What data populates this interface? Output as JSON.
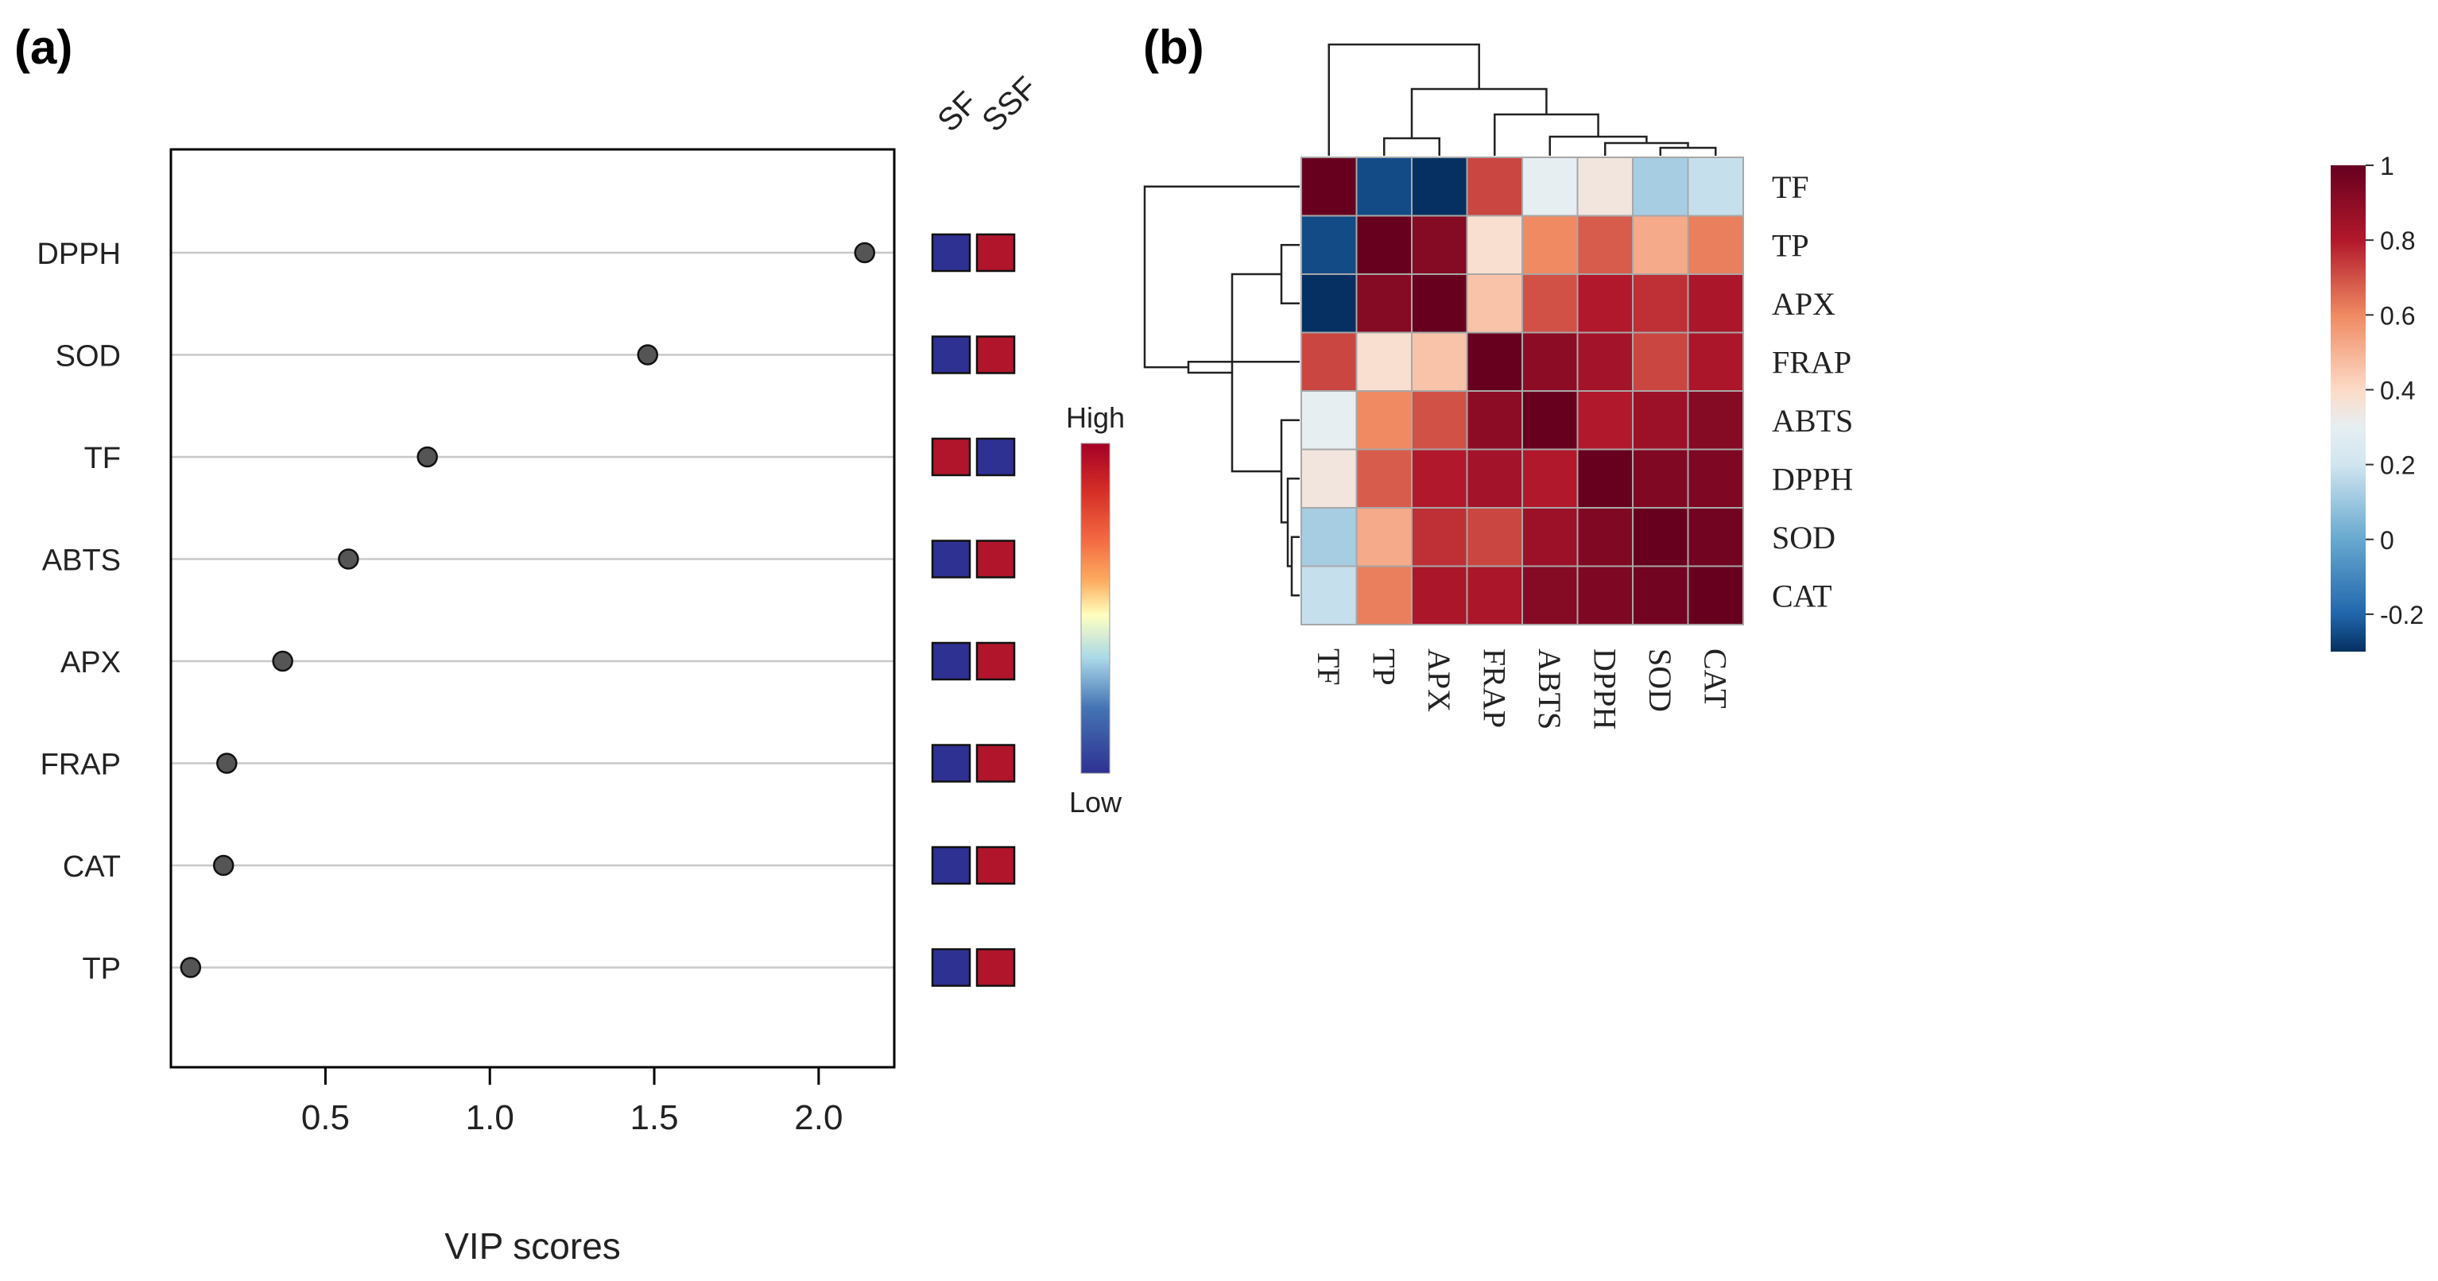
{
  "panel_a": {
    "label": "(a)",
    "chart_data": {
      "type": "scatter",
      "xlabel": "VIP scores",
      "xlim": [
        0.03,
        2.23
      ],
      "xticks": [
        "0.5",
        "1.0",
        "1.5",
        "2.0"
      ],
      "xtick_values": [
        0.5,
        1.0,
        1.5,
        2.0
      ],
      "categories": [
        "DPPH",
        "SOD",
        "TF",
        "ABTS",
        "APX",
        "FRAP",
        "CAT",
        "TP"
      ],
      "values": [
        2.14,
        1.48,
        0.81,
        0.57,
        0.37,
        0.2,
        0.19,
        0.09
      ],
      "groups": [
        "SF",
        "SSF"
      ],
      "group_levels": [
        [
          "low",
          "high"
        ],
        [
          "low",
          "high"
        ],
        [
          "high",
          "low"
        ],
        [
          "low",
          "high"
        ],
        [
          "low",
          "high"
        ],
        [
          "low",
          "high"
        ],
        [
          "low",
          "high"
        ],
        [
          "low",
          "high"
        ]
      ],
      "level_colors": {
        "low": "#2e3192",
        "high": "#b0152b"
      },
      "legend": {
        "high_label": "High",
        "low_label": "Low"
      },
      "colors": {
        "point": "#555555",
        "gridline": "#c8c8c8"
      }
    }
  },
  "panel_b": {
    "label": "(b)",
    "chart_data": {
      "type": "heatmap",
      "row_labels": [
        "TF",
        "TP",
        "APX",
        "FRAP",
        "ABTS",
        "DPPH",
        "SOD",
        "CAT"
      ],
      "col_labels": [
        "TF",
        "TP",
        "APX",
        "FRAP",
        "ABTS",
        "DPPH",
        "SOD",
        "CAT"
      ],
      "values": [
        [
          1.0,
          -0.25,
          -0.3,
          0.72,
          0.3,
          0.35,
          0.12,
          0.18
        ],
        [
          -0.25,
          1.0,
          0.92,
          0.38,
          0.6,
          0.68,
          0.52,
          0.62
        ],
        [
          -0.3,
          0.92,
          1.0,
          0.46,
          0.7,
          0.8,
          0.76,
          0.82
        ],
        [
          0.72,
          0.38,
          0.46,
          1.0,
          0.9,
          0.84,
          0.72,
          0.82
        ],
        [
          0.3,
          0.6,
          0.7,
          0.9,
          1.0,
          0.8,
          0.86,
          0.92
        ],
        [
          0.35,
          0.68,
          0.8,
          0.84,
          0.8,
          1.0,
          0.93,
          0.94
        ],
        [
          0.12,
          0.52,
          0.76,
          0.72,
          0.86,
          0.93,
          1.0,
          0.97
        ],
        [
          0.18,
          0.62,
          0.82,
          0.82,
          0.92,
          0.94,
          0.97,
          1.0
        ]
      ],
      "colorbar": {
        "range": [
          -0.3,
          1.0
        ],
        "ticks": [
          "1",
          "0.8",
          "0.6",
          "0.4",
          "0.2",
          "0",
          "-0.2"
        ],
        "tick_values": [
          1,
          0.8,
          0.6,
          0.4,
          0.2,
          0,
          -0.2
        ]
      },
      "colors": {
        "cell_border": "#a8a8a8",
        "dendrogram": "#222222"
      }
    }
  }
}
